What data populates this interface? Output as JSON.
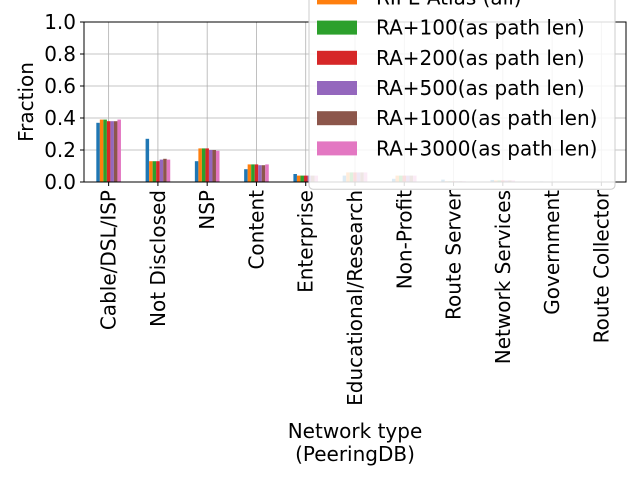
{
  "chart_data": {
    "type": "bar",
    "xlabel": [
      "Network type",
      "(PeeringDB)"
    ],
    "ylabel": "Fraction",
    "ylim": [
      0,
      1.0
    ],
    "yticks": [
      "0.0",
      "0.2",
      "0.4",
      "0.6",
      "0.8",
      "1.0"
    ],
    "grid": true,
    "legend_position": "top-right",
    "categories": [
      "Cable/DSL/ISP",
      "Not Disclosed",
      "NSP",
      "Content",
      "Enterprise",
      "Educational/Research",
      "Non-Profit",
      "Route Server",
      "Network Services",
      "Government",
      "Route Collector"
    ],
    "series": [
      {
        "name": "",
        "color": "#1f77b4",
        "values": [
          0.37,
          0.27,
          0.13,
          0.08,
          0.05,
          0.04,
          0.02,
          0.015,
          0.013,
          0.004,
          0.001
        ]
      },
      {
        "name": "RIPE Atlas (all)",
        "color": "#ff7f0e",
        "values": [
          0.39,
          0.13,
          0.21,
          0.11,
          0.04,
          0.06,
          0.04,
          0.005,
          0.01,
          0.002,
          0.0
        ]
      },
      {
        "name": "RA+100(as path len)",
        "color": "#2ca02c",
        "values": [
          0.39,
          0.13,
          0.21,
          0.11,
          0.04,
          0.06,
          0.04,
          0.005,
          0.01,
          0.002,
          0.0
        ]
      },
      {
        "name": "RA+200(as path len)",
        "color": "#d62728",
        "values": [
          0.38,
          0.13,
          0.21,
          0.11,
          0.04,
          0.06,
          0.04,
          0.005,
          0.01,
          0.002,
          0.0
        ]
      },
      {
        "name": "RA+500(as path len)",
        "color": "#9467bd",
        "values": [
          0.38,
          0.14,
          0.2,
          0.105,
          0.04,
          0.06,
          0.04,
          0.005,
          0.01,
          0.002,
          0.0
        ]
      },
      {
        "name": "RA+1000(as path len)",
        "color": "#8c564b",
        "values": [
          0.38,
          0.145,
          0.2,
          0.105,
          0.04,
          0.06,
          0.04,
          0.005,
          0.01,
          0.002,
          0.0
        ]
      },
      {
        "name": "RA+3000(as path len)",
        "color": "#e377c2",
        "values": [
          0.39,
          0.14,
          0.195,
          0.11,
          0.04,
          0.06,
          0.04,
          0.005,
          0.01,
          0.002,
          0.0
        ]
      }
    ]
  }
}
